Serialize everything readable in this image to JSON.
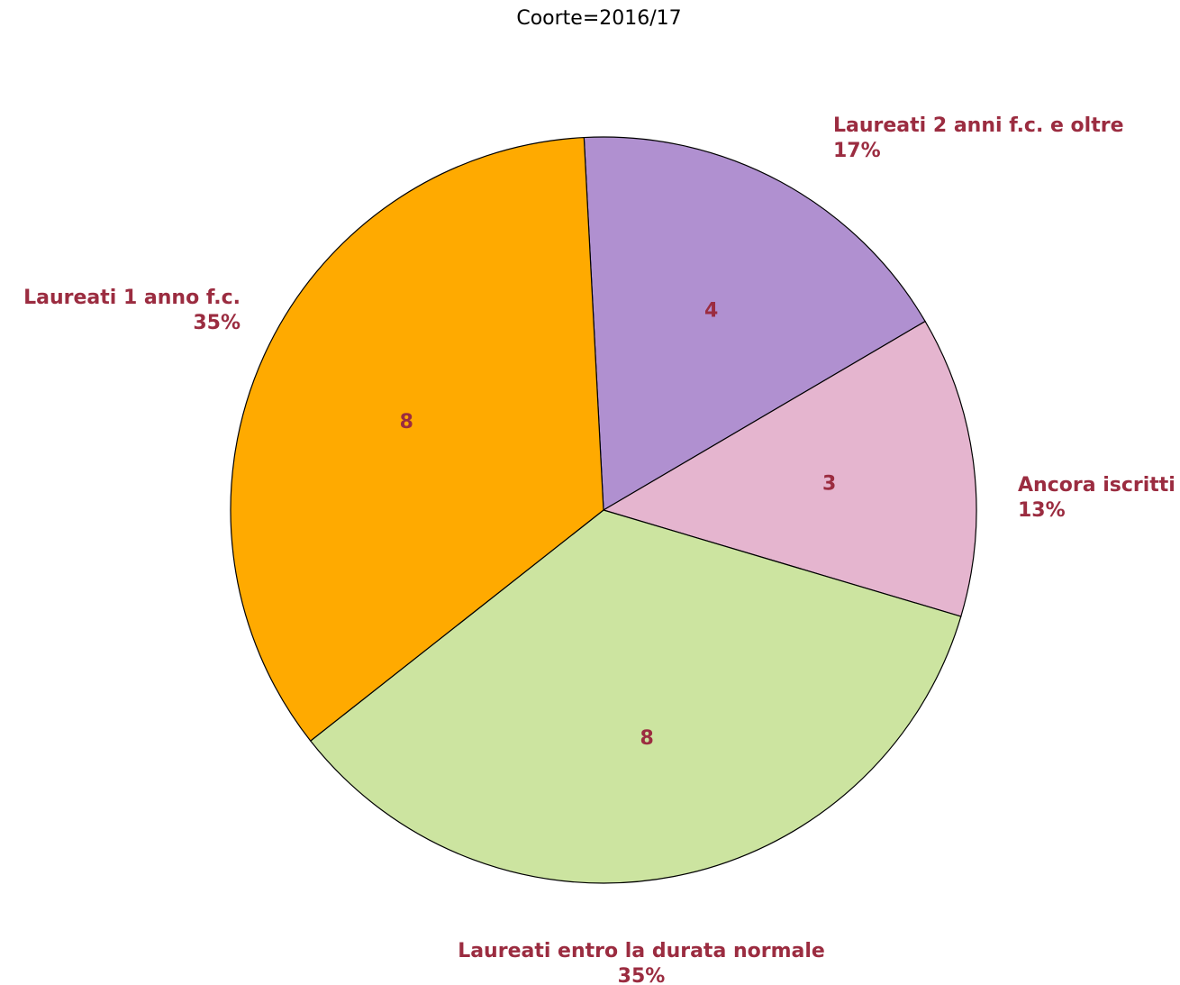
{
  "chart_data": {
    "type": "pie",
    "title": "Coorte=2016/17",
    "slices": [
      {
        "label": "Laureati 2 anni f.c. e oltre",
        "value": 4,
        "percent": "17%",
        "color": "#b090d0"
      },
      {
        "label": "Ancora iscritti",
        "value": 3,
        "percent": "13%",
        "color": "#e5b5cf"
      },
      {
        "label": "Laureati entro la durata normale",
        "value": 8,
        "percent": "35%",
        "color": "#cce4a0"
      },
      {
        "label": "Laureati 1 anno f.c.",
        "value": 8,
        "percent": "35%",
        "color": "#ffaa00"
      }
    ],
    "label_color": "#9b2c40",
    "legend": "none"
  }
}
